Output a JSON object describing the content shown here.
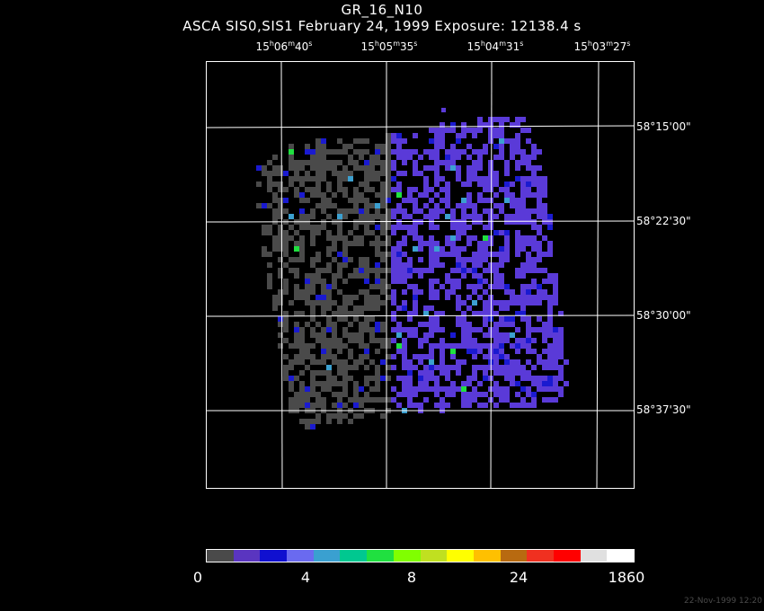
{
  "title": "GR_16_N10",
  "subtitle": "ASCA SIS0,SIS1 February 24, 1999 Exposure: 12138.4 s",
  "ra_labels": [
    {
      "h": "15",
      "m": "06",
      "s": "40"
    },
    {
      "h": "15",
      "m": "05",
      "s": "35"
    },
    {
      "h": "15",
      "m": "04",
      "s": "31"
    },
    {
      "h": "15",
      "m": "03",
      "s": "27"
    }
  ],
  "dec_labels": [
    "58°15'00\"",
    "58°22'30\"",
    "58°30'00\"",
    "58°37'30\""
  ],
  "colorbar": {
    "colors": [
      "#4a4a4a",
      "#5a35c0",
      "#1010d0",
      "#6a6af0",
      "#3aa0d0",
      "#00c890",
      "#20e040",
      "#80ff00",
      "#c0e020",
      "#ffff00",
      "#ffc000",
      "#b86a10",
      "#f03020",
      "#ff0000",
      "#e0e0e0",
      "#ffffff"
    ],
    "labels": [
      "0",
      "4",
      "8",
      "24",
      "1860"
    ]
  },
  "image_colors": {
    "background": "#000000",
    "grid": "#ffffff",
    "sis0_low": "#4a4a4a",
    "sis1_low": "#5a3ad8",
    "mid": "#1a1ad0",
    "bright": "#3ca0d0",
    "hot": "#20e040"
  },
  "timestamp": "22-Nov-1999 12:20"
}
